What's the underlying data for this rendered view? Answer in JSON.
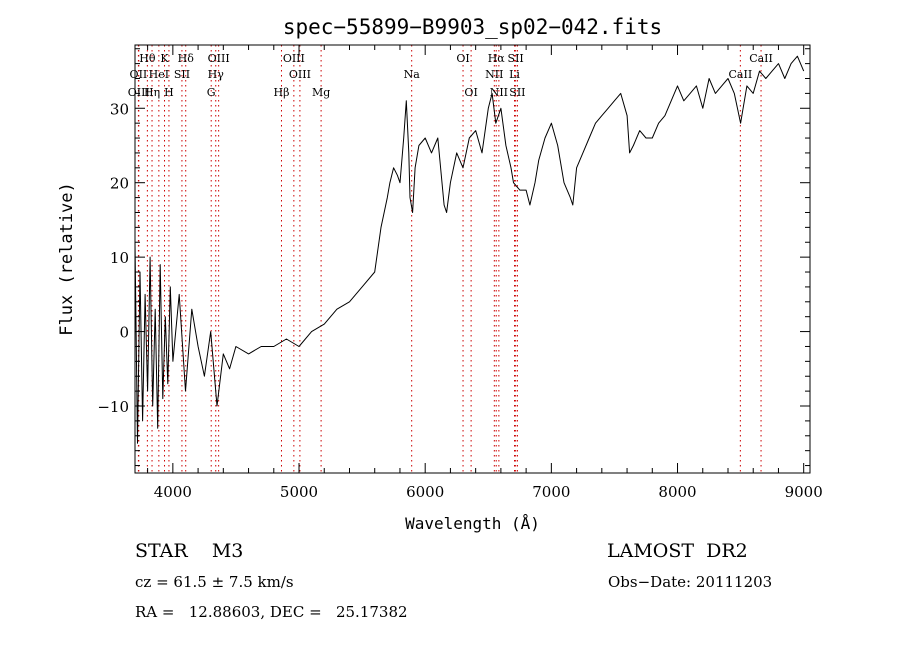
{
  "chart_data": {
    "type": "line",
    "title": "spec−55899−B9903_sp02−042.fits",
    "xlabel": "Wavelength (Å)",
    "ylabel": "Flux (relative)",
    "xlim": [
      3700,
      9050
    ],
    "ylim": [
      -19,
      38.5
    ],
    "xticks": [
      4000,
      5000,
      6000,
      7000,
      8000,
      9000
    ],
    "yticks": [
      -10,
      0,
      10,
      20,
      30
    ],
    "ytick_labels": [
      "−10",
      "0",
      "10",
      "20",
      "30"
    ],
    "grid": false,
    "line_color": "#000000",
    "marker_color": "#cc0000",
    "series": [
      {
        "x": [
          3700,
          3720,
          3740,
          3760,
          3780,
          3800,
          3820,
          3840,
          3860,
          3880,
          3900,
          3920,
          3940,
          3960,
          3980,
          4000,
          4050,
          4100,
          4150,
          4200,
          4250,
          4300,
          4350,
          4400,
          4450,
          4500,
          4600,
          4700,
          4800,
          4900,
          5000,
          5100,
          5200,
          5300,
          5400,
          5500,
          5600,
          5650,
          5700,
          5720,
          5750,
          5780,
          5800,
          5830,
          5850,
          5870,
          5880,
          5900,
          5920,
          5950,
          6000,
          6050,
          6100,
          6150,
          6170,
          6200,
          6250,
          6300,
          6350,
          6400,
          6450,
          6500,
          6530,
          6560,
          6600,
          6640,
          6680,
          6700,
          6750,
          6800,
          6830,
          6870,
          6900,
          6950,
          7000,
          7050,
          7100,
          7150,
          7170,
          7200,
          7250,
          7300,
          7350,
          7400,
          7450,
          7500,
          7550,
          7600,
          7620,
          7650,
          7700,
          7750,
          7800,
          7850,
          7900,
          7950,
          8000,
          8050,
          8100,
          8150,
          8200,
          8250,
          8300,
          8350,
          8400,
          8450,
          8500,
          8520,
          8550,
          8600,
          8650,
          8700,
          8750,
          8800,
          8850,
          8900,
          8950,
          9000
        ],
        "y": [
          12,
          -15,
          8,
          -12,
          5,
          -8,
          10,
          -10,
          3,
          -13,
          9,
          -9,
          2,
          -7,
          6,
          -4,
          5,
          -8,
          3,
          -2,
          -6,
          0,
          -10,
          -3,
          -5,
          -2,
          -3,
          -2,
          -2,
          -1,
          -2,
          0,
          1,
          3,
          4,
          6,
          8,
          14,
          18,
          20,
          22,
          21,
          20,
          26,
          31,
          24,
          18,
          16,
          22,
          25,
          26,
          24,
          26,
          17,
          16,
          20,
          24,
          22,
          26,
          27,
          24,
          30,
          32,
          28,
          30,
          25,
          22,
          20,
          19,
          19,
          17,
          20,
          23,
          26,
          28,
          25,
          20,
          18,
          17,
          22,
          24,
          26,
          28,
          29,
          30,
          31,
          32,
          29,
          24,
          25,
          27,
          26,
          26,
          28,
          29,
          31,
          33,
          31,
          32,
          33,
          30,
          34,
          32,
          33,
          34,
          32,
          28,
          30,
          33,
          32,
          35,
          34,
          35,
          36,
          34,
          36,
          37,
          35
        ]
      }
    ],
    "lines": [
      {
        "label": "Hθ",
        "x": 3798,
        "row": 1
      },
      {
        "label": "K",
        "x": 3934,
        "row": 1
      },
      {
        "label": "Hδ",
        "x": 4102,
        "row": 1
      },
      {
        "label": "OIII",
        "x": 4363,
        "row": 1
      },
      {
        "label": "OIII",
        "x": 4959,
        "row": 1
      },
      {
        "label": "OI",
        "x": 6300,
        "row": 1
      },
      {
        "label": "Hα",
        "x": 6563,
        "row": 1
      },
      {
        "label": "SII",
        "x": 6717,
        "row": 1
      },
      {
        "label": "CaII",
        "x": 8662,
        "row": 1
      },
      {
        "label": "OII",
        "x": 3727,
        "row": 2
      },
      {
        "label": "HeI",
        "x": 3889,
        "row": 2
      },
      {
        "label": "SII",
        "x": 4072,
        "row": 2
      },
      {
        "label": "Hγ",
        "x": 4340,
        "row": 2
      },
      {
        "label": "OIII",
        "x": 5007,
        "row": 2
      },
      {
        "label": "Na",
        "x": 5893,
        "row": 2
      },
      {
        "label": "NII",
        "x": 6548,
        "row": 2
      },
      {
        "label": "Li",
        "x": 6708,
        "row": 2
      },
      {
        "label": "CaII",
        "x": 8498,
        "row": 2
      },
      {
        "label": "OIII",
        "x": 3730,
        "row": 3
      },
      {
        "label": "Hη",
        "x": 3835,
        "row": 3
      },
      {
        "label": "H",
        "x": 3969,
        "row": 3
      },
      {
        "label": "G",
        "x": 4304,
        "row": 3
      },
      {
        "label": "Hβ",
        "x": 4861,
        "row": 3
      },
      {
        "label": "Mg",
        "x": 5175,
        "row": 3
      },
      {
        "label": "OI",
        "x": 6364,
        "row": 3
      },
      {
        "label": "NII",
        "x": 6584,
        "row": 3
      },
      {
        "label": "SII",
        "x": 6731,
        "row": 3
      }
    ]
  },
  "info": {
    "object": "STAR    M3",
    "survey": "LAMOST  DR2",
    "cz": "cz = 61.5 ± 7.5 km/s",
    "obs_date": "Obs−Date: 20111203",
    "coords": "RA =   12.88603, DEC =   25.17382"
  }
}
